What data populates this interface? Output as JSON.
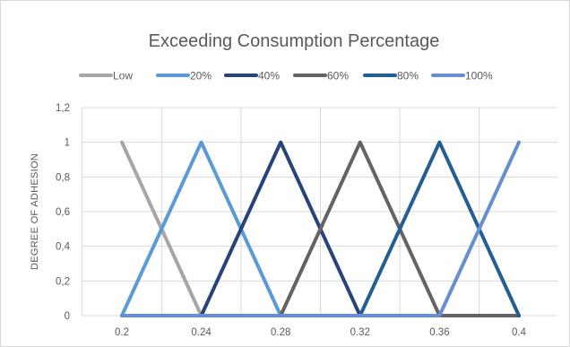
{
  "chart_data": {
    "type": "line",
    "title": "Exceeding Consumption Percentage",
    "xlabel": "",
    "ylabel": "DEGREE OF ADHESION",
    "x_ticks": [
      "0.2",
      "0.24",
      "0.28",
      "0.32",
      "0.36",
      "0.4"
    ],
    "y_ticks": [
      "0",
      "0,2",
      "0,4",
      "0,6",
      "0,8",
      "1",
      "1,2"
    ],
    "xlim": [
      0.2,
      0.4
    ],
    "ylim": [
      0,
      1.2
    ],
    "grid": true,
    "legend_position": "top",
    "series": [
      {
        "name": "Low",
        "color": "#a6a6a6",
        "x": [
          0.2,
          0.24,
          0.4
        ],
        "y": [
          1,
          0,
          0
        ]
      },
      {
        "name": "20%",
        "color": "#5b9bd5",
        "x": [
          0.2,
          0.24,
          0.28,
          0.4
        ],
        "y": [
          0,
          1,
          0,
          0
        ]
      },
      {
        "name": "40%",
        "color": "#264478",
        "x": [
          0.2,
          0.24,
          0.28,
          0.32,
          0.4
        ],
        "y": [
          0,
          0,
          1,
          0,
          0
        ]
      },
      {
        "name": "60%",
        "color": "#636363",
        "x": [
          0.2,
          0.28,
          0.32,
          0.36,
          0.4
        ],
        "y": [
          0,
          0,
          1,
          0,
          0
        ]
      },
      {
        "name": "80%",
        "color": "#255e91",
        "x": [
          0.2,
          0.32,
          0.36,
          0.4
        ],
        "y": [
          0,
          0,
          1,
          0
        ]
      },
      {
        "name": "100%",
        "color": "#698ed0",
        "x": [
          0.2,
          0.36,
          0.4
        ],
        "y": [
          0,
          0,
          1
        ]
      }
    ]
  }
}
